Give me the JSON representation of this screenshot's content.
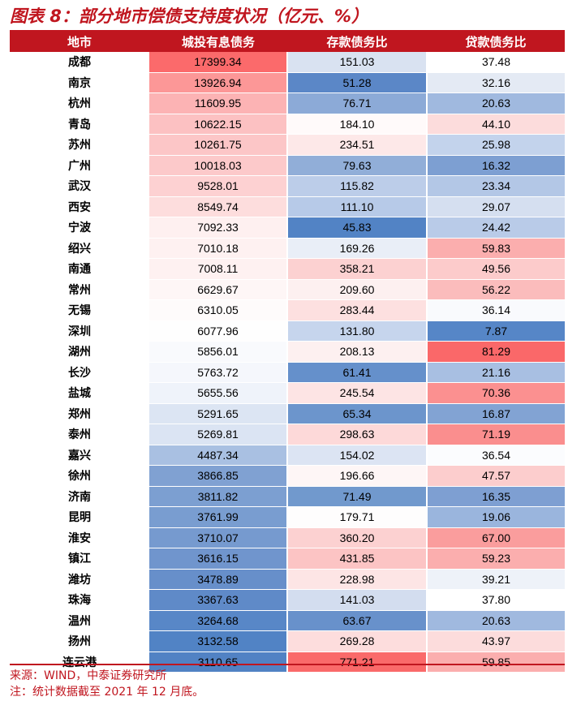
{
  "title": "图表 8：部分地市偿债支持度状况（亿元、%）",
  "headers": [
    "地市",
    "城投有息债务",
    "存款债务比",
    "贷款债务比"
  ],
  "rows": [
    [
      "成都",
      "17399.34",
      "151.03",
      "37.48"
    ],
    [
      "南京",
      "13926.94",
      "51.28",
      "32.16"
    ],
    [
      "杭州",
      "11609.95",
      "76.71",
      "20.63"
    ],
    [
      "青岛",
      "10622.15",
      "184.10",
      "44.10"
    ],
    [
      "苏州",
      "10261.75",
      "234.51",
      "25.98"
    ],
    [
      "广州",
      "10018.03",
      "79.63",
      "16.32"
    ],
    [
      "武汉",
      "9528.01",
      "115.82",
      "23.34"
    ],
    [
      "西安",
      "8549.74",
      "111.10",
      "29.07"
    ],
    [
      "宁波",
      "7092.33",
      "45.83",
      "24.42"
    ],
    [
      "绍兴",
      "7010.18",
      "169.26",
      "59.83"
    ],
    [
      "南通",
      "7008.11",
      "358.21",
      "49.56"
    ],
    [
      "常州",
      "6629.67",
      "209.60",
      "56.22"
    ],
    [
      "无锡",
      "6310.05",
      "283.44",
      "36.14"
    ],
    [
      "深圳",
      "6077.96",
      "131.80",
      "7.87"
    ],
    [
      "湖州",
      "5856.01",
      "208.13",
      "81.29"
    ],
    [
      "长沙",
      "5763.72",
      "61.41",
      "21.16"
    ],
    [
      "盐城",
      "5655.56",
      "245.54",
      "70.36"
    ],
    [
      "郑州",
      "5291.65",
      "65.34",
      "16.87"
    ],
    [
      "泰州",
      "5269.81",
      "298.63",
      "71.19"
    ],
    [
      "嘉兴",
      "4487.34",
      "154.02",
      "36.54"
    ],
    [
      "徐州",
      "3866.85",
      "196.66",
      "47.57"
    ],
    [
      "济南",
      "3811.82",
      "71.49",
      "16.35"
    ],
    [
      "昆明",
      "3761.99",
      "179.71",
      "19.06"
    ],
    [
      "淮安",
      "3710.07",
      "360.20",
      "67.00"
    ],
    [
      "镇江",
      "3616.15",
      "431.85",
      "59.23"
    ],
    [
      "潍坊",
      "3478.89",
      "228.98",
      "39.21"
    ],
    [
      "珠海",
      "3367.63",
      "141.03",
      "37.80"
    ],
    [
      "温州",
      "3264.68",
      "63.67",
      "20.63"
    ],
    [
      "扬州",
      "3132.58",
      "269.28",
      "43.97"
    ],
    [
      "连云港",
      "3110.65",
      "771.21",
      "59.85"
    ]
  ],
  "cell_colors": [
    [
      "",
      "#fb6a6b",
      "#d9e2f1",
      "#ffffff"
    ],
    [
      "",
      "#fc9797",
      "#5b87c7",
      "#e4eaf4"
    ],
    [
      "",
      "#fcb3b4",
      "#8caad7",
      "#a0b9df"
    ],
    [
      "",
      "#fcc1c2",
      "#fffafa",
      "#fcdcdc"
    ],
    [
      "",
      "#fcc6c7",
      "#fde8e8",
      "#c3d3ec"
    ],
    [
      "",
      "#fcc9ca",
      "#91aed8",
      "#7d9fd2"
    ],
    [
      "",
      "#fdd1d2",
      "#bccde9",
      "#b3c7e6"
    ],
    [
      "",
      "#fddddd",
      "#b7cae8",
      "#d5dff0"
    ],
    [
      "",
      "#fef0f0",
      "#5283c5",
      "#b9cbe8"
    ],
    [
      "",
      "#fef1f1",
      "#e9eef7",
      "#fbaeae"
    ],
    [
      "",
      "#fef1f1",
      "#fcd1d1",
      "#fccbcb"
    ],
    [
      "",
      "#fef6f6",
      "#fdf0f0",
      "#fbbcbc"
    ],
    [
      "",
      "#fefbfb",
      "#fde0e0",
      "#f9fafd"
    ],
    [
      "",
      "#fefefe",
      "#c6d5ed",
      "#5686c7"
    ],
    [
      "",
      "#f9fafd",
      "#fdf0f0",
      "#fa6869"
    ],
    [
      "",
      "#f5f7fc",
      "#6590cb",
      "#a8bfe2"
    ],
    [
      "",
      "#eff3fa",
      "#fde4e4",
      "#fb9090"
    ],
    [
      "",
      "#dce5f3",
      "#6c95cc",
      "#82a3d3"
    ],
    [
      "",
      "#dbe4f3",
      "#fdd9d9",
      "#fa8e8e"
    ],
    [
      "",
      "#a9c0e2",
      "#dce4f3",
      "#fbfcfe"
    ],
    [
      "",
      "#80a1d2",
      "#fef6f6",
      "#fccdcd"
    ],
    [
      "",
      "#7c9fd1",
      "#7199cd",
      "#7e9fd2"
    ],
    [
      "",
      "#799dd0",
      "#fefdfd",
      "#9ab5dd"
    ],
    [
      "",
      "#769acf",
      "#fcd1d1",
      "#fa9d9d"
    ],
    [
      "",
      "#7095cd",
      "#fcc4c4",
      "#fbaeae"
    ],
    [
      "",
      "#678fca",
      "#fde5e5",
      "#eef2f9"
    ],
    [
      "",
      "#5f8ac8",
      "#d3ddef",
      "#ffffff"
    ],
    [
      "",
      "#5887c7",
      "#6891cb",
      "#a0b9df"
    ],
    [
      "",
      "#5183c5",
      "#fddddd",
      "#fcdcdc"
    ],
    [
      "",
      "#5182c4",
      "#fa6a6a",
      "#fbaeae"
    ]
  ],
  "footer": {
    "source": "来源：WIND，中泰证券研究所",
    "note": "注：统计数据截至 2021 年 12 月底。"
  }
}
